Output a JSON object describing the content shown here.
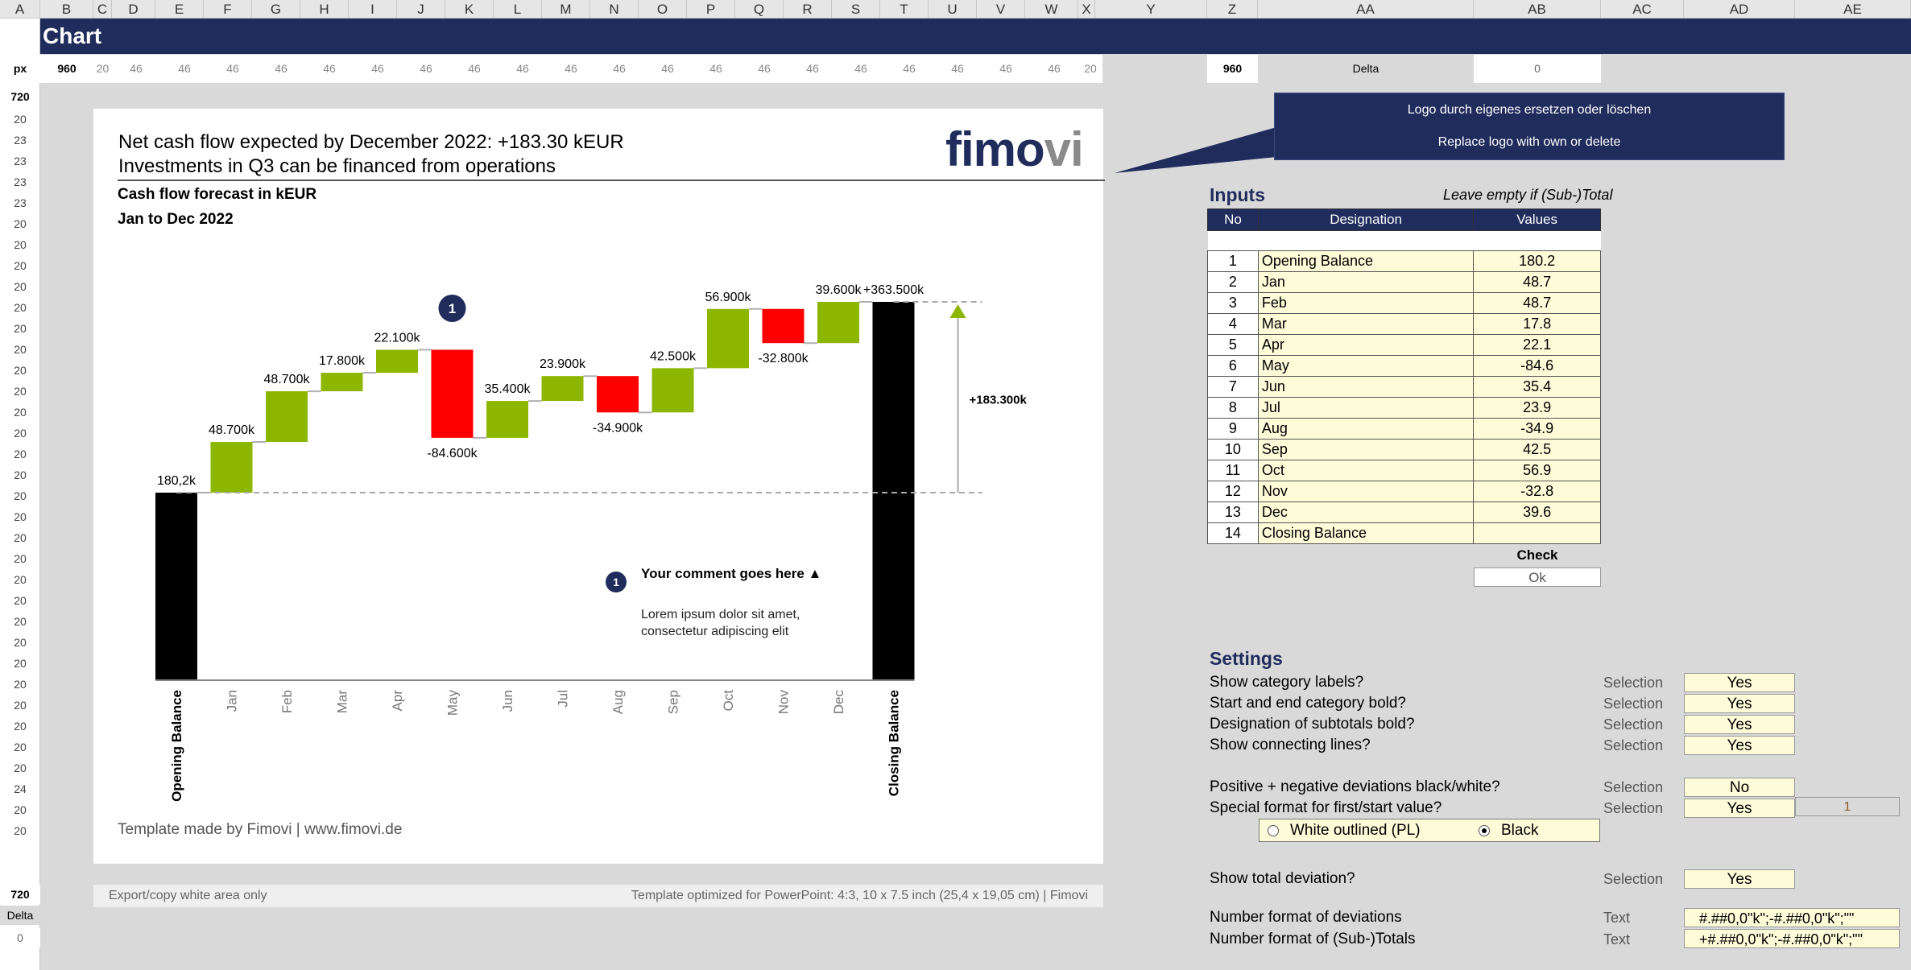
{
  "sheet": {
    "columns": [
      "A",
      "B",
      "C",
      "D",
      "E",
      "F",
      "G",
      "H",
      "I",
      "J",
      "K",
      "L",
      "M",
      "N",
      "O",
      "P",
      "Q",
      "R",
      "S",
      "T",
      "U",
      "V",
      "W",
      "X",
      "Y",
      "Z",
      "AA",
      "AB",
      "AC",
      "AD",
      "AE"
    ],
    "title": "Chart",
    "px_label": "px",
    "px_width": "960",
    "px_small": "20",
    "px_col": "46",
    "px_row_height": "720",
    "delta_label": "Delta",
    "delta_value": "0",
    "row_heights": [
      "20",
      "23",
      "23",
      "23",
      "23",
      "20",
      "20",
      "20",
      "20",
      "20",
      "20",
      "20",
      "20",
      "20",
      "20",
      "20",
      "20",
      "20",
      "20",
      "20",
      "20",
      "20",
      "20",
      "20",
      "20",
      "20",
      "20",
      "20",
      "20",
      "20",
      "20",
      "20",
      "24",
      "20",
      "20"
    ]
  },
  "slide": {
    "headline_line1": "Net cash flow expected by December 2022: +183.30 kEUR",
    "headline_line2": "Investments in Q3 can be financed from operations",
    "logo_main": "fimo",
    "logo_accent": "vi",
    "subtitle_line1": "Cash flow forecast in kEUR",
    "subtitle_line2": "Jan to Dec 2022",
    "credit": "Template made by Fimovi  |  www.fimovi.de",
    "marker_number": "1",
    "comment_badge": "1",
    "comment_title": "Your comment goes here ▲",
    "comment_body_line1": "Lorem ipsum dolor sit amet,",
    "comment_body_line2": "consectetur adipiscing elit"
  },
  "chart_data": {
    "type": "bar",
    "subtype": "waterfall",
    "title": "Cash flow forecast in kEUR",
    "subtitle": "Jan to Dec 2022",
    "categories": [
      "Opening Balance",
      "Jan",
      "Feb",
      "Mar",
      "Apr",
      "May",
      "Jun",
      "Jul",
      "Aug",
      "Sep",
      "Oct",
      "Nov",
      "Dec",
      "Closing Balance"
    ],
    "values": [
      180.2,
      48.7,
      48.7,
      17.8,
      22.1,
      -84.6,
      35.4,
      23.9,
      -34.9,
      42.5,
      56.9,
      -32.8,
      39.6,
      363.5
    ],
    "labels": [
      "180,2k",
      "48.700k",
      "48.700k",
      "17.800k",
      "22.100k",
      "-84.600k",
      "35.400k",
      "23.900k",
      "-34.900k",
      "42.500k",
      "56.900k",
      "-32.800k",
      "39.600k",
      "+363.500k"
    ],
    "total_deviation_label": "+183.300k",
    "colors": {
      "total": "#000000",
      "positive": "#8db600",
      "negative": "#ff0000",
      "accent": "#1f2c5c"
    },
    "bold_categories": [
      "Opening Balance",
      "Closing Balance"
    ],
    "connecting_lines": true,
    "grid": false
  },
  "export": {
    "left_text": "Export/copy white area only",
    "right_text": "Template optimized for PowerPoint: 4:3, 10 x 7.5 inch (25,4 x 19,05 cm)  |  Fimovi"
  },
  "callout": {
    "line1": "Logo durch eigenes ersetzen oder löschen",
    "line2": "Replace logo with own or delete"
  },
  "inputs": {
    "title": "Inputs",
    "note": "Leave empty if (Sub-)Total",
    "headers": [
      "No",
      "Designation",
      "Values"
    ],
    "rows": [
      {
        "no": "1",
        "designation": "Opening Balance",
        "value": "180.2"
      },
      {
        "no": "2",
        "designation": "Jan",
        "value": "48.7"
      },
      {
        "no": "3",
        "designation": "Feb",
        "value": "48.7"
      },
      {
        "no": "4",
        "designation": "Mar",
        "value": "17.8"
      },
      {
        "no": "5",
        "designation": "Apr",
        "value": "22.1"
      },
      {
        "no": "6",
        "designation": "May",
        "value": "-84.6"
      },
      {
        "no": "7",
        "designation": "Jun",
        "value": "35.4"
      },
      {
        "no": "8",
        "designation": "Jul",
        "value": "23.9"
      },
      {
        "no": "9",
        "designation": "Aug",
        "value": "-34.9"
      },
      {
        "no": "10",
        "designation": "Sep",
        "value": "42.5"
      },
      {
        "no": "11",
        "designation": "Oct",
        "value": "56.9"
      },
      {
        "no": "12",
        "designation": "Nov",
        "value": "-32.8"
      },
      {
        "no": "13",
        "designation": "Dec",
        "value": "39.6"
      },
      {
        "no": "14",
        "designation": "Closing Balance",
        "value": ""
      }
    ],
    "check_label": "Check",
    "check_value": "Ok"
  },
  "settings": {
    "title": "Settings",
    "items": [
      {
        "label": "Show category labels?",
        "type": "Selection",
        "value": "Yes"
      },
      {
        "label": "Start and end category bold?",
        "type": "Selection",
        "value": "Yes"
      },
      {
        "label": "Designation of subtotals bold?",
        "type": "Selection",
        "value": "Yes"
      },
      {
        "label": "Show connecting lines?",
        "type": "Selection",
        "value": "Yes"
      },
      {
        "label": "Positive + negative deviations black/white?",
        "type": "Selection",
        "value": "No"
      },
      {
        "label": "Special format for first/start value?",
        "type": "Selection",
        "value": "Yes"
      },
      {
        "label": "Show total deviation?",
        "type": "Selection",
        "value": "Yes"
      }
    ],
    "special_index": "1",
    "radio_option1": "White outlined (PL)",
    "radio_option2": "Black",
    "radio_selected": "Black",
    "format_deviations_label": "Number format of deviations",
    "format_deviations_type": "Text",
    "format_deviations_value": "#.##0,0\"k\";-#.##0,0\"k\";\"\"",
    "format_totals_label": "Number format of (Sub-)Totals",
    "format_totals_type": "Text",
    "format_totals_value": "+#.##0,0\"k\";-#.##0,0\"k\";\"\""
  }
}
